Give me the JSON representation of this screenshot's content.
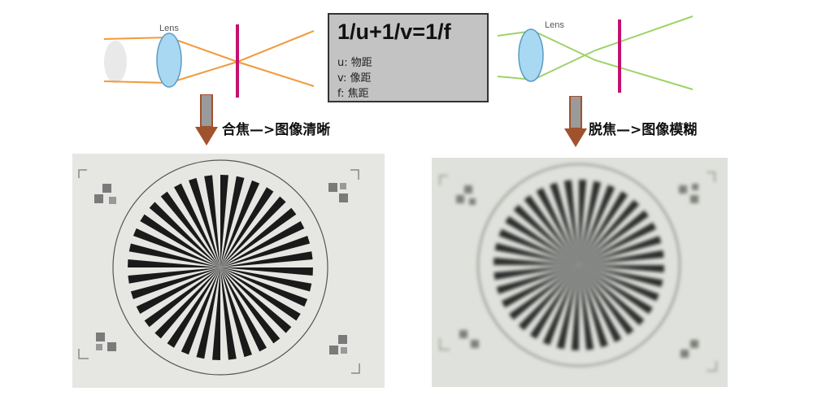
{
  "focused_diagram": {
    "lens_label": "Lens"
  },
  "defocused_diagram": {
    "lens_label": "Lens"
  },
  "formula_box": {
    "formula": "1/u+1/v=1/f",
    "legend": [
      {
        "key": "u:",
        "meaning": "物距"
      },
      {
        "key": "v:",
        "meaning": "像距"
      },
      {
        "key": "f:",
        "meaning": "焦距"
      }
    ]
  },
  "captions": {
    "focused": "合焦—>图像清晰",
    "defocused": "脱焦—>图像模糊"
  },
  "colors": {
    "focused_rays": "#f09a3c",
    "defocused_rays": "#9ed268",
    "sensor": "#c2126e",
    "lens_fill": "#a9d8f2",
    "arrow": "#a0522d",
    "box_bg": "#c3c3c3"
  }
}
